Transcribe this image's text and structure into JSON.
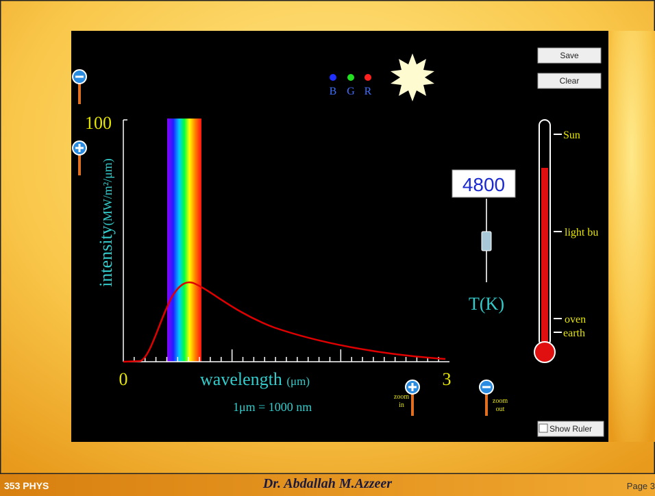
{
  "slide": {
    "footer_left": "353 PHYS",
    "footer_center": "Dr. Abdallah M.Azzeer",
    "footer_right": "Page 3"
  },
  "simulation": {
    "buttons": [
      "Save",
      "Clear"
    ],
    "color_labels": [
      "B",
      "G",
      "R"
    ],
    "y_axis_label": "intensity",
    "y_axis_unit": "(MW/m²/μm)",
    "y_max": "100",
    "x_min": "0",
    "x_max": "3",
    "x_axis_label": "wavelength",
    "x_axis_unit": "(μm)",
    "conversion": "1μm = 1000 nm",
    "zoom_in": [
      "zoom",
      "in"
    ],
    "zoom_out": [
      "zoom",
      "out"
    ],
    "temperature": "4800",
    "temperature_label": "T(K)",
    "thermometer_labels": [
      "Sun",
      "light bu",
      "oven",
      "earth"
    ],
    "show_ruler": "Show Ruler"
  }
}
